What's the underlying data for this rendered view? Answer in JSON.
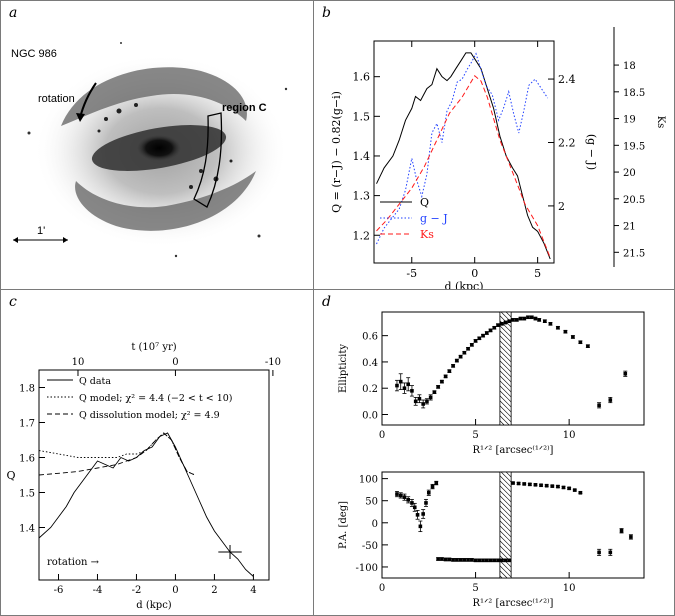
{
  "panels": {
    "a": {
      "label": "a",
      "object": "NGC 986",
      "rotation_label": "rotation",
      "region_label": "region C",
      "scale_label": "1'"
    },
    "b": {
      "label": "b"
    },
    "c": {
      "label": "c"
    },
    "d": {
      "label": "d"
    }
  },
  "chart_data": [
    {
      "id": "b",
      "type": "line",
      "xlabel": "d (kpc)",
      "ylabel_left": "Q = (r−J) − 0.82(g−i)",
      "ylabel_right1": "(g − J)",
      "ylabel_right2": "Ks",
      "xlim": [
        -8,
        6.3
      ],
      "ylim_left": [
        1.13,
        1.69
      ],
      "ylim_right1": [
        1.82,
        2.52
      ],
      "ylim_right2": [
        17.55,
        21.7
      ],
      "x_ticks": [
        -5,
        0,
        5
      ],
      "y_ticks_left": [
        1.2,
        1.3,
        1.4,
        1.5,
        1.6
      ],
      "y_ticks_right1": [
        2,
        2.2,
        2.4
      ],
      "y_ticks_right2": [
        18,
        18.5,
        19,
        19.5,
        20,
        20.5,
        21,
        21.5
      ],
      "y_tick_labels_right1": [
        "2",
        "2.2",
        "2.4"
      ],
      "y_tick_labels_right2": [
        "18",
        "18.5",
        "19",
        "19.5",
        "20",
        "20.5",
        "21",
        "21.5"
      ],
      "legend": [
        {
          "name": "Q",
          "color": "#000000",
          "style": "solid"
        },
        {
          "name": "g − J",
          "color": "#1f3fff",
          "style": "dotted"
        },
        {
          "name": "Ks",
          "color": "#ff1a1a",
          "style": "dashed"
        }
      ],
      "series": [
        {
          "name": "Q",
          "axis": "left",
          "color": "#000000",
          "dash": "",
          "x": [
            -7.8,
            -7.2,
            -6.5,
            -6,
            -5.5,
            -5,
            -4.7,
            -4.3,
            -3.8,
            -3.4,
            -3,
            -2.6,
            -2.2,
            -1.9,
            -1.5,
            -1.1,
            -0.7,
            -0.3,
            0.1,
            0.5,
            1,
            1.5,
            2,
            2.5,
            3,
            3.4,
            3.8,
            4.2,
            4.6,
            5,
            5.5,
            6
          ],
          "y": [
            1.33,
            1.37,
            1.4,
            1.44,
            1.49,
            1.52,
            1.55,
            1.54,
            1.57,
            1.58,
            1.62,
            1.6,
            1.59,
            1.6,
            1.62,
            1.64,
            1.66,
            1.66,
            1.64,
            1.62,
            1.57,
            1.52,
            1.45,
            1.4,
            1.37,
            1.35,
            1.3,
            1.25,
            1.22,
            1.21,
            1.18,
            1.14
          ]
        },
        {
          "name": "g − J",
          "axis": "right1",
          "color": "#1f3fff",
          "dash": "1.5,2",
          "x": [
            -7.8,
            -7.2,
            -6.6,
            -6,
            -5.5,
            -5,
            -4.6,
            -4.2,
            -3.8,
            -3.4,
            -3,
            -2.6,
            -2.2,
            -1.8,
            -1.4,
            -1,
            -0.6,
            -0.3,
            0.1,
            0.5,
            0.9,
            1.4,
            1.9,
            2.3,
            2.7,
            3.1,
            3.5,
            3.9,
            4.3,
            4.8,
            5.3,
            5.8
          ],
          "y": [
            1.88,
            1.93,
            1.96,
            1.99,
            2.05,
            2.15,
            2.08,
            2.03,
            2.1,
            2.23,
            2.26,
            2.2,
            2.3,
            2.33,
            2.39,
            2.4,
            2.43,
            2.45,
            2.48,
            2.43,
            2.38,
            2.35,
            2.27,
            2.31,
            2.36,
            2.29,
            2.23,
            2.3,
            2.38,
            2.4,
            2.37,
            2.34
          ]
        },
        {
          "name": "Ks",
          "axis": "right2",
          "color": "#ff1a1a",
          "dash": "5,3",
          "x": [
            -7.8,
            -7,
            -6,
            -5,
            -4,
            -3,
            -2,
            -1,
            -0.5,
            0,
            0.5,
            1,
            1.5,
            2,
            2.5,
            3,
            3.5,
            4,
            4.5,
            5,
            5.5,
            6
          ],
          "y": [
            21.1,
            20.9,
            20.6,
            20.3,
            19.9,
            19.4,
            18.9,
            18.6,
            18.4,
            18.2,
            18.3,
            18.6,
            19.0,
            19.4,
            19.7,
            20.0,
            20.3,
            20.6,
            20.8,
            21.0,
            21.3,
            21.6
          ]
        }
      ]
    },
    {
      "id": "c",
      "type": "line",
      "xlabel": "d (kpc)",
      "ylabel": "Q",
      "top_axis_label": "t (10⁷ yr)",
      "top_ticks": [
        10,
        0,
        -10
      ],
      "xlim": [
        -7,
        4.8
      ],
      "ylim": [
        1.25,
        1.85
      ],
      "x_ticks": [
        -6,
        -4,
        -2,
        0,
        2,
        4
      ],
      "y_ticks": [
        1.4,
        1.5,
        1.6,
        1.7,
        1.8
      ],
      "annotation": "rotation →",
      "legend": [
        {
          "name": "Q data",
          "style": "solid"
        },
        {
          "name": "Q model; χ² = 4.4 (−2 < t < 10)",
          "style": "dotted"
        },
        {
          "name": "Q dissolution model; χ² = 4.9",
          "style": "dashed"
        }
      ],
      "series": [
        {
          "name": "Q data",
          "dash": "",
          "x": [
            -7,
            -6.4,
            -6,
            -5.6,
            -5.2,
            -4.8,
            -4.4,
            -4,
            -3.6,
            -3.2,
            -2.8,
            -2.4,
            -2,
            -1.6,
            -1.2,
            -0.8,
            -0.4,
            0,
            0.4,
            0.8,
            1.2,
            1.6,
            2,
            2.4,
            2.8,
            3.2,
            3.6,
            4
          ],
          "y": [
            1.37,
            1.4,
            1.43,
            1.46,
            1.5,
            1.53,
            1.56,
            1.59,
            1.58,
            1.57,
            1.6,
            1.59,
            1.6,
            1.62,
            1.63,
            1.66,
            1.67,
            1.63,
            1.58,
            1.53,
            1.48,
            1.43,
            1.39,
            1.36,
            1.33,
            1.31,
            1.28,
            1.26
          ]
        },
        {
          "name": "Q model",
          "dash": "1.5,2",
          "x": [
            -7,
            -6,
            -5,
            -4,
            -3,
            -2.5,
            -2,
            -1.5,
            -1,
            -0.6,
            -0.2,
            0.2,
            0.6,
            1
          ],
          "y": [
            1.62,
            1.61,
            1.6,
            1.6,
            1.6,
            1.61,
            1.61,
            1.62,
            1.65,
            1.67,
            1.65,
            1.6,
            1.56,
            1.55
          ]
        },
        {
          "name": "Q dissolution model",
          "dash": "5,3",
          "x": [
            -7,
            -6,
            -5,
            -4,
            -3,
            -2.5,
            -2,
            -1.5,
            -1,
            -0.6,
            -0.2,
            0.2,
            0.6,
            1
          ],
          "y": [
            1.55,
            1.555,
            1.56,
            1.57,
            1.58,
            1.59,
            1.6,
            1.62,
            1.65,
            1.67,
            1.65,
            1.6,
            1.56,
            1.55
          ]
        }
      ],
      "error_bar": {
        "x": 2.8,
        "y": 1.33,
        "xerr": 0.6,
        "yerr": 0.02
      }
    },
    {
      "id": "d_top",
      "type": "scatter",
      "xlabel": "R¹ᐟ² [arcsec⁽¹ᐟ²⁾]",
      "ylabel": "Ellipticity",
      "xlim": [
        0,
        14
      ],
      "ylim": [
        -0.08,
        0.78
      ],
      "x_ticks": [
        0,
        5,
        10
      ],
      "y_ticks": [
        0,
        0.2,
        0.4,
        0.6
      ],
      "shaded_band": [
        6.3,
        6.9
      ],
      "points": {
        "x": [
          0.8,
          1.0,
          1.2,
          1.4,
          1.6,
          1.8,
          2.0,
          2.2,
          2.4,
          2.6,
          2.8,
          3.0,
          3.2,
          3.4,
          3.6,
          3.8,
          4.0,
          4.2,
          4.4,
          4.6,
          4.8,
          5.0,
          5.2,
          5.4,
          5.6,
          5.8,
          6.0,
          6.2,
          6.4,
          6.6,
          6.8,
          7.0,
          7.2,
          7.4,
          7.6,
          7.8,
          8.0,
          8.2,
          8.4,
          8.7,
          9.0,
          9.4,
          9.8,
          10.2,
          10.6,
          11.0,
          11.6,
          12.2,
          13.0
        ],
        "y": [
          0.22,
          0.25,
          0.2,
          0.23,
          0.18,
          0.1,
          0.12,
          0.08,
          0.1,
          0.13,
          0.17,
          0.21,
          0.25,
          0.29,
          0.33,
          0.37,
          0.41,
          0.44,
          0.47,
          0.5,
          0.53,
          0.56,
          0.58,
          0.6,
          0.62,
          0.64,
          0.66,
          0.68,
          0.69,
          0.7,
          0.71,
          0.72,
          0.72,
          0.73,
          0.73,
          0.74,
          0.74,
          0.73,
          0.72,
          0.71,
          0.69,
          0.66,
          0.63,
          0.59,
          0.55,
          0.52,
          0.07,
          0.11,
          0.31
        ],
        "yerr": [
          0.04,
          0.06,
          0.04,
          0.05,
          0.04,
          0.03,
          0.03,
          0.03,
          0.02,
          0.02,
          0.01,
          0.01,
          0.01,
          0.01,
          0.01,
          0.01,
          0.01,
          0.01,
          0.01,
          0.01,
          0.01,
          0.01,
          0.01,
          0.01,
          0.01,
          0.01,
          0.01,
          0.01,
          0.01,
          0.01,
          0.01,
          0.01,
          0.01,
          0.01,
          0.01,
          0.01,
          0.01,
          0.01,
          0.01,
          0.01,
          0.01,
          0.01,
          0.01,
          0.01,
          0.01,
          0.01,
          0.02,
          0.02,
          0.02
        ]
      }
    },
    {
      "id": "d_bottom",
      "type": "scatter",
      "xlabel": "R¹ᐟ² [arcsec⁽¹ᐟ²⁾]",
      "ylabel": "P.A. [deg]",
      "xlim": [
        0,
        14
      ],
      "ylim": [
        -125,
        115
      ],
      "x_ticks": [
        0,
        5,
        10
      ],
      "y_ticks": [
        -100,
        -50,
        0,
        50,
        100
      ],
      "shaded_band": [
        6.3,
        6.9
      ],
      "points": {
        "x": [
          0.8,
          1.0,
          1.2,
          1.4,
          1.6,
          1.75,
          1.9,
          2.05,
          2.2,
          2.35,
          2.5,
          2.7,
          2.9,
          3.0,
          3.2,
          3.4,
          3.6,
          3.8,
          4.0,
          4.2,
          4.4,
          4.6,
          4.8,
          5.0,
          5.2,
          5.4,
          5.6,
          5.8,
          6.0,
          6.2,
          6.4,
          6.6,
          6.8,
          7.0,
          7.3,
          7.6,
          7.9,
          8.2,
          8.5,
          8.8,
          9.1,
          9.4,
          9.7,
          10.0,
          10.3,
          10.6,
          11.6,
          12.2,
          12.8,
          13.3
        ],
        "y": [
          65,
          62,
          58,
          52,
          45,
          35,
          18,
          -8,
          20,
          45,
          68,
          82,
          90,
          -82,
          -82,
          -83,
          -83,
          -84,
          -84,
          -84,
          -84,
          -84,
          -84,
          -85,
          -85,
          -85,
          -85,
          -85,
          -85,
          -85,
          -85,
          -85,
          -85,
          90,
          89,
          88,
          87,
          86,
          85,
          84,
          83,
          82,
          80,
          78,
          74,
          68,
          -67,
          -67,
          -18,
          -32
        ],
        "yerr": [
          6,
          6,
          7,
          7,
          8,
          9,
          10,
          12,
          10,
          8,
          6,
          5,
          4,
          3,
          3,
          3,
          3,
          3,
          3,
          3,
          3,
          3,
          3,
          3,
          3,
          3,
          3,
          3,
          3,
          3,
          3,
          3,
          3,
          2,
          2,
          2,
          2,
          2,
          2,
          2,
          2,
          2,
          2,
          2,
          2,
          2,
          7,
          7,
          5,
          5
        ]
      }
    }
  ]
}
